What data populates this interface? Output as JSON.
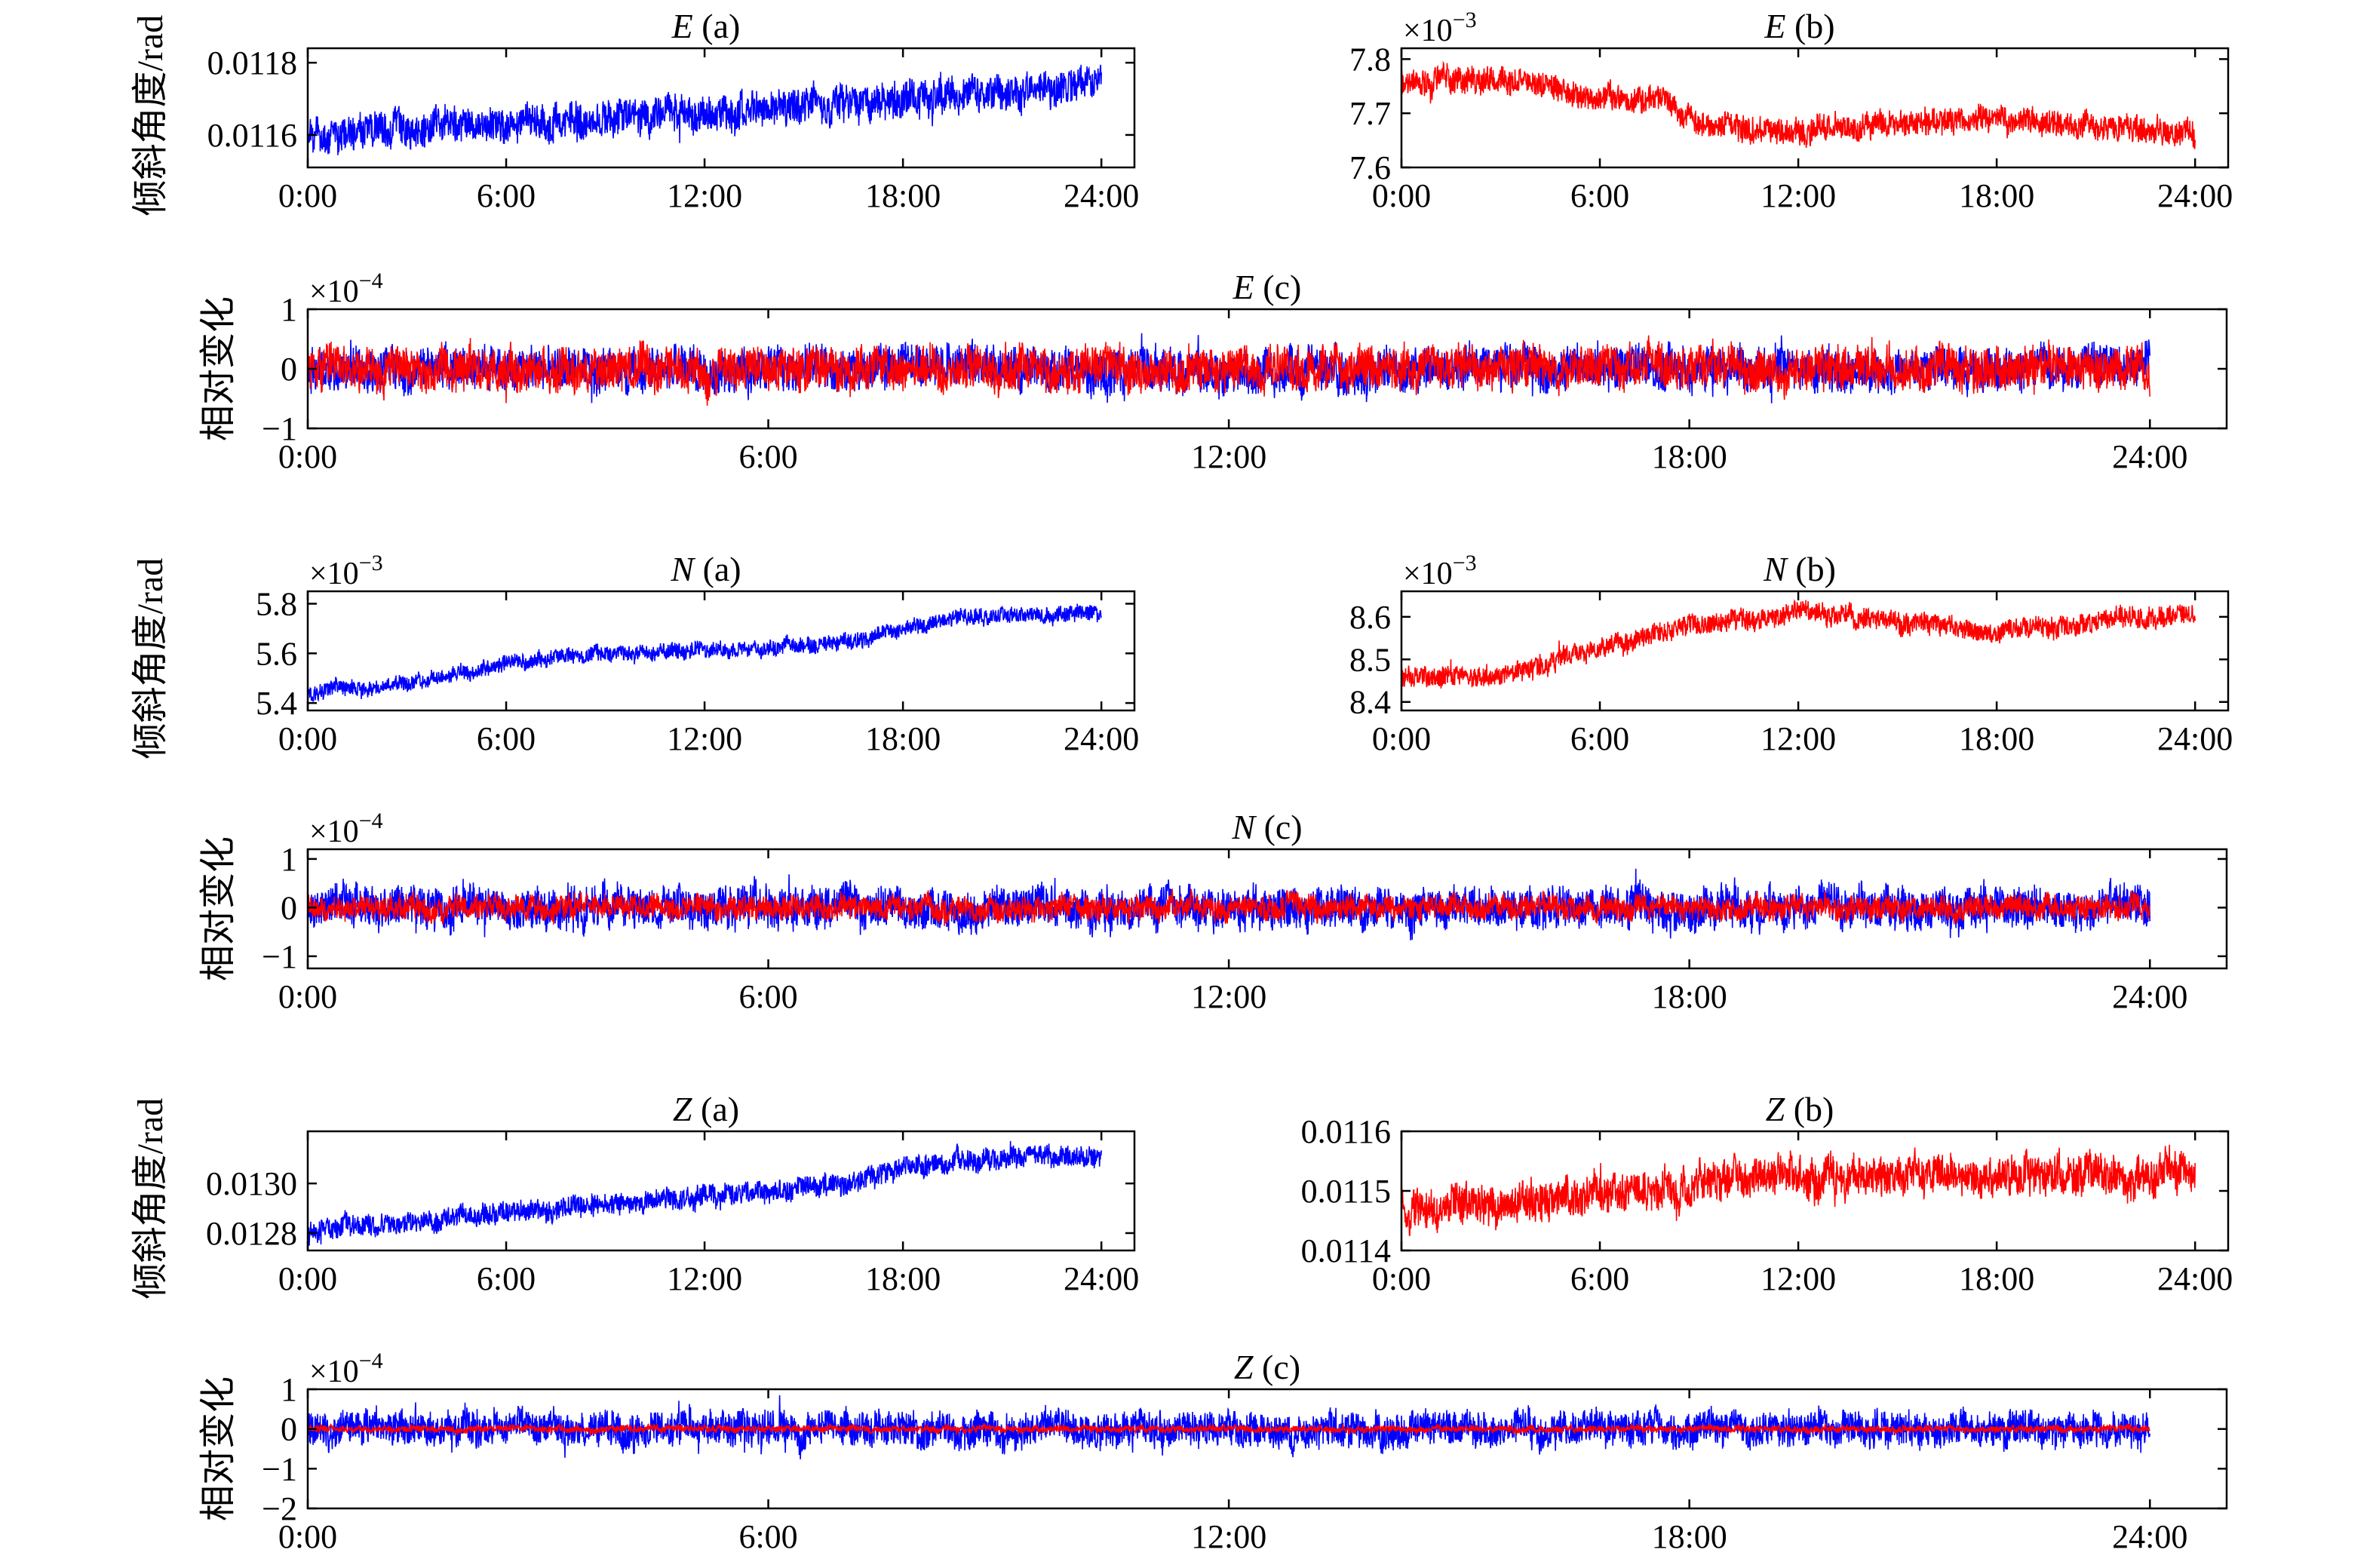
{
  "figure": {
    "ylabel_tilt": "倾斜角度/rad",
    "ylabel_rel": "相对变化"
  },
  "colors": {
    "series_a": "#0000ff",
    "series_b": "#ff0000",
    "axis": "#000000"
  },
  "chart_data": [
    {
      "id": "E-a",
      "type": "line",
      "title_letter": "E",
      "title_suffix": " (a)",
      "ylabel": "倾斜角度/rad",
      "exponent": "",
      "x_ticks": [
        "0:00",
        "6:00",
        "12:00",
        "18:00",
        "24:00"
      ],
      "x_range_hours": [
        0,
        24.0
      ],
      "y_ticks": [
        {
          "v": 0.0116,
          "label": "0.0116"
        },
        {
          "v": 0.0118,
          "label": "0.0118"
        }
      ],
      "ylim": [
        0.01151,
        0.01184
      ],
      "series": [
        {
          "color": "#0000ff",
          "trend": [
            [
              0,
              0.0116
            ],
            [
              6,
              0.01163
            ],
            [
              12,
              0.01166
            ],
            [
              18,
              0.0117
            ],
            [
              24,
              0.01173
            ]
          ],
          "noise": 4.5e-05
        }
      ]
    },
    {
      "id": "E-b",
      "type": "line",
      "title_letter": "E",
      "title_suffix": " (b)",
      "ylabel": "",
      "exponent": "×10−3",
      "x_ticks": [
        "0:00",
        "6:00",
        "12:00",
        "18:00",
        "24:00"
      ],
      "x_range_hours": [
        0,
        24.0
      ],
      "y_ticks": [
        {
          "v": 7.6,
          "label": "7.6"
        },
        {
          "v": 7.7,
          "label": "7.7"
        },
        {
          "v": 7.8,
          "label": "7.8"
        }
      ],
      "ylim": [
        7.6,
        7.82
      ],
      "series": [
        {
          "color": "#ff0000",
          "trend": [
            [
              0,
              7.76
            ],
            [
              3,
              7.76
            ],
            [
              6,
              7.73
            ],
            [
              8,
              7.72
            ],
            [
              9,
              7.68
            ],
            [
              12,
              7.67
            ],
            [
              18,
              7.69
            ],
            [
              24,
              7.66
            ]
          ],
          "noise": 0.022
        }
      ]
    },
    {
      "id": "E-c",
      "type": "line",
      "title_letter": "E",
      "title_suffix": " (c)",
      "ylabel": "相对变化",
      "exponent": "×10−4",
      "x_ticks": [
        "0:00",
        "6:00",
        "12:00",
        "18:00",
        "24:00"
      ],
      "x_range_hours": [
        0,
        24.0
      ],
      "y_ticks": [
        {
          "v": -1,
          "label": "−1"
        },
        {
          "v": 0,
          "label": "0"
        },
        {
          "v": 1,
          "label": "1"
        }
      ],
      "ylim": [
        -1,
        1
      ],
      "series": [
        {
          "color": "#0000ff",
          "trend": [
            [
              0,
              0
            ],
            [
              24,
              0
            ]
          ],
          "noise": 0.32
        },
        {
          "color": "#ff0000",
          "trend": [
            [
              0,
              0
            ],
            [
              24,
              0
            ]
          ],
          "noise": 0.32
        }
      ]
    },
    {
      "id": "N-a",
      "type": "line",
      "title_letter": "N",
      "title_suffix": " (a)",
      "ylabel": "倾斜角度/rad",
      "exponent": "×10−3",
      "x_ticks": [
        "0:00",
        "6:00",
        "12:00",
        "18:00",
        "24:00"
      ],
      "x_range_hours": [
        0,
        24.0
      ],
      "y_ticks": [
        {
          "v": 5.4,
          "label": "5.4"
        },
        {
          "v": 5.6,
          "label": "5.6"
        },
        {
          "v": 5.8,
          "label": "5.8"
        }
      ],
      "ylim": [
        5.37,
        5.85
      ],
      "series": [
        {
          "color": "#0000ff",
          "trend": [
            [
              0,
              5.44
            ],
            [
              3,
              5.48
            ],
            [
              6,
              5.56
            ],
            [
              9,
              5.6
            ],
            [
              12,
              5.61
            ],
            [
              15,
              5.63
            ],
            [
              17,
              5.66
            ],
            [
              18,
              5.7
            ],
            [
              20,
              5.75
            ],
            [
              24,
              5.76
            ]
          ],
          "noise": 0.03
        }
      ]
    },
    {
      "id": "N-b",
      "type": "line",
      "title_letter": "N",
      "title_suffix": " (b)",
      "ylabel": "",
      "exponent": "×10−3",
      "x_ticks": [
        "0:00",
        "6:00",
        "12:00",
        "18:00",
        "24:00"
      ],
      "x_range_hours": [
        0,
        24.0
      ],
      "y_ticks": [
        {
          "v": 8.4,
          "label": "8.4"
        },
        {
          "v": 8.5,
          "label": "8.5"
        },
        {
          "v": 8.6,
          "label": "8.6"
        }
      ],
      "ylim": [
        8.38,
        8.66
      ],
      "series": [
        {
          "color": "#ff0000",
          "trend": [
            [
              0,
              8.46
            ],
            [
              3,
              8.46
            ],
            [
              6,
              8.53
            ],
            [
              9,
              8.58
            ],
            [
              12,
              8.61
            ],
            [
              15,
              8.59
            ],
            [
              18,
              8.57
            ],
            [
              24,
              8.61
            ]
          ],
          "noise": 0.022
        }
      ]
    },
    {
      "id": "N-c",
      "type": "line",
      "title_letter": "N",
      "title_suffix": " (c)",
      "ylabel": "相对变化",
      "exponent": "×10−4",
      "x_ticks": [
        "0:00",
        "6:00",
        "12:00",
        "18:00",
        "24:00"
      ],
      "x_range_hours": [
        0,
        24.0
      ],
      "y_ticks": [
        {
          "v": -1,
          "label": "−1"
        },
        {
          "v": 0,
          "label": "0"
        },
        {
          "v": 1,
          "label": "1"
        }
      ],
      "ylim": [
        -1.25,
        1.2
      ],
      "series": [
        {
          "color": "#0000ff",
          "trend": [
            [
              0,
              0
            ],
            [
              24,
              0
            ]
          ],
          "noise": 0.38
        },
        {
          "color": "#ff0000",
          "trend": [
            [
              0,
              0
            ],
            [
              24,
              0
            ]
          ],
          "noise": 0.22
        }
      ]
    },
    {
      "id": "Z-a",
      "type": "line",
      "title_letter": "Z",
      "title_suffix": " (a)",
      "ylabel": "倾斜角度/rad",
      "exponent": "",
      "x_ticks": [
        "0:00",
        "6:00",
        "12:00",
        "18:00",
        "24:00"
      ],
      "x_range_hours": [
        0,
        24.0
      ],
      "y_ticks": [
        {
          "v": 0.0128,
          "label": "0.0128"
        },
        {
          "v": 0.013,
          "label": "0.0130"
        }
      ],
      "ylim": [
        0.01273,
        0.01321
      ],
      "series": [
        {
          "color": "#0000ff",
          "trend": [
            [
              0,
              0.01281
            ],
            [
              6,
              0.01288
            ],
            [
              12,
              0.01295
            ],
            [
              16,
              0.01299
            ],
            [
              18,
              0.01306
            ],
            [
              20,
              0.0131
            ],
            [
              24,
              0.01311
            ]
          ],
          "noise": 4e-05
        }
      ]
    },
    {
      "id": "Z-b",
      "type": "line",
      "title_letter": "Z",
      "title_suffix": " (b)",
      "ylabel": "",
      "exponent": "",
      "x_ticks": [
        "0:00",
        "6:00",
        "12:00",
        "18:00",
        "24:00"
      ],
      "x_range_hours": [
        0,
        24.0
      ],
      "y_ticks": [
        {
          "v": 0.0114,
          "label": "0.0114"
        },
        {
          "v": 0.0115,
          "label": "0.0115"
        },
        {
          "v": 0.0116,
          "label": "0.0116"
        }
      ],
      "ylim": [
        0.0114,
        0.0116
      ],
      "series": [
        {
          "color": "#ff0000",
          "trend": [
            [
              0,
              0.011475
            ],
            [
              4,
              0.01148
            ],
            [
              6,
              0.011495
            ],
            [
              9,
              0.01151
            ],
            [
              12,
              0.011525
            ],
            [
              18,
              0.011525
            ],
            [
              24,
              0.011525
            ]
          ],
          "noise": 3e-05
        }
      ]
    },
    {
      "id": "Z-c",
      "type": "line",
      "title_letter": "Z",
      "title_suffix": " (c)",
      "ylabel": "相对变化",
      "exponent": "×10−4",
      "x_ticks": [
        "0:00",
        "6:00",
        "12:00",
        "18:00",
        "24:00"
      ],
      "x_range_hours": [
        0,
        24.0
      ],
      "y_ticks": [
        {
          "v": -2,
          "label": "−2"
        },
        {
          "v": -1,
          "label": "−1"
        },
        {
          "v": 0,
          "label": "0"
        },
        {
          "v": 1,
          "label": "1"
        }
      ],
      "ylim": [
        -2,
        1
      ],
      "series": [
        {
          "color": "#0000ff",
          "trend": [
            [
              0,
              0
            ],
            [
              24,
              0
            ]
          ],
          "noise": 0.4
        },
        {
          "color": "#ff0000",
          "trend": [
            [
              0,
              0
            ],
            [
              24,
              0
            ]
          ],
          "noise": 0.08
        }
      ]
    }
  ]
}
